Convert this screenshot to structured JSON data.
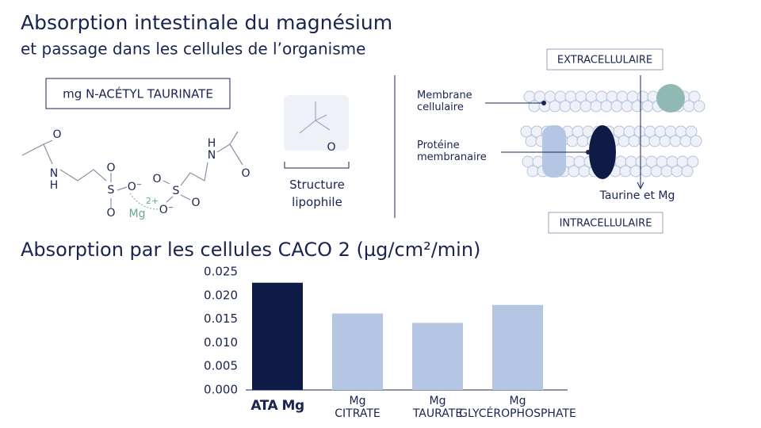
{
  "header": {
    "title": "Absorption intestinale du magnésium",
    "subtitle": "et passage dans les cellules de l’organisme"
  },
  "molecule": {
    "name": "mg N-ACÉTYL TAURINATE",
    "atoms": [
      "O",
      "N",
      "H",
      "S",
      "O",
      "O",
      "O⁻",
      "2+",
      "Mg",
      "O⁻",
      "S",
      "O",
      "O",
      "H",
      "N",
      "O"
    ],
    "lipophile_atom": "O",
    "lipophile_label": "Structure lipophile"
  },
  "membrane": {
    "outside": "EXTRACELLULAIRE",
    "inside": "INTRACELLULAIRE",
    "membrane_label": "Membrane cellulaire",
    "protein_label": "Protéine membranaire",
    "transport_label": "Taurine et Mg"
  },
  "chart_data": {
    "type": "bar",
    "title": "Absorption par les cellules CACO 2 (µg/cm²/min)",
    "categories": [
      "ATA Mg",
      "Mg CITRATE",
      "Mg TAURATE",
      "Mg GLYCÉROPHOSPHATE"
    ],
    "values": [
      0.0227,
      0.0162,
      0.0142,
      0.018
    ],
    "colors": [
      "#0f1b47",
      "#b5c6e4",
      "#b5c6e4",
      "#b5c6e4"
    ],
    "ylim": [
      0,
      0.025
    ],
    "yticks": [
      {
        "value": 0,
        "label": "0.000"
      },
      0.005,
      {
        "value": 0.01,
        "label": "0.010"
      },
      0.015,
      {
        "value": 0.02,
        "label": "0.020"
      },
      0.025
    ],
    "grid": false
  }
}
